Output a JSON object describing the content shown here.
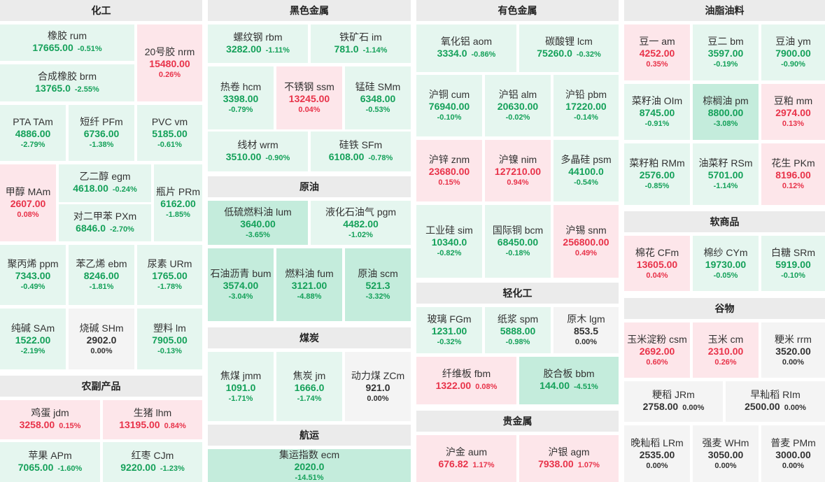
{
  "colors": {
    "down": "#15a15a",
    "up": "#e8334a",
    "flat": "#333333",
    "down_bg": "#e5f6ef",
    "down_strong_bg": "#c4ecdc",
    "up_bg": "#fde6ea",
    "flat_bg": "#f4f4f4",
    "header_bg": "#ebebeb"
  },
  "sections": {
    "chem": {
      "title": "化工",
      "items": [
        {
          "name": "橡胶  rum",
          "price": "17665.00",
          "change": "-0.51%"
        },
        {
          "name": "20号胶 nrm",
          "price": "15480.00",
          "change": "0.26%"
        },
        {
          "name": "合成橡胶  brm",
          "price": "13765.0",
          "change": "-2.55%"
        },
        {
          "name": "PTA  TAm",
          "price": "4886.00",
          "change": "-2.79%"
        },
        {
          "name": "短纤  PFm",
          "price": "6736.00",
          "change": "-1.38%"
        },
        {
          "name": "PVC  vm",
          "price": "5185.00",
          "change": "-0.61%"
        },
        {
          "name": "甲醇 MAm",
          "price": "2607.00",
          "change": "0.08%"
        },
        {
          "name": "乙二醇  egm",
          "price": "4618.00",
          "change": "-0.24%"
        },
        {
          "name": "对二甲苯  PXm",
          "price": "6846.0",
          "change": "-2.70%"
        },
        {
          "name": "瓶片 PRm",
          "price": "6162.00",
          "change": "-1.85%"
        },
        {
          "name": "聚丙烯  ppm",
          "price": "7343.00",
          "change": "-0.49%"
        },
        {
          "name": "苯乙烯  ebm",
          "price": "8246.00",
          "change": "-1.81%"
        },
        {
          "name": "尿素  URm",
          "price": "1765.00",
          "change": "-1.78%"
        },
        {
          "name": "纯碱  SAm",
          "price": "1522.00",
          "change": "-2.19%"
        },
        {
          "name": "烧碱  SHm",
          "price": "2902.0",
          "change": "0.00%"
        },
        {
          "name": "塑料  lm",
          "price": "7905.00",
          "change": "-0.13%"
        }
      ]
    },
    "agri": {
      "title": "农副产品",
      "items": [
        {
          "name": "鸡蛋  jdm",
          "price": "3258.00",
          "change": "0.15%"
        },
        {
          "name": "生猪  lhm",
          "price": "13195.00",
          "change": "0.84%"
        },
        {
          "name": "苹果  APm",
          "price": "7065.00",
          "change": "-1.60%"
        },
        {
          "name": "红枣  CJm",
          "price": "9220.00",
          "change": "-1.23%"
        }
      ]
    },
    "ferrous": {
      "title": "黑色金属",
      "items": [
        {
          "name": "螺纹钢  rbm",
          "price": "3282.00",
          "change": "-1.11%"
        },
        {
          "name": "铁矿石  im",
          "price": "781.0",
          "change": "-1.14%"
        },
        {
          "name": "热卷  hcm",
          "price": "3398.00",
          "change": "-0.79%"
        },
        {
          "name": "不锈钢  ssm",
          "price": "13245.00",
          "change": "0.04%"
        },
        {
          "name": "锰硅  SMm",
          "price": "6348.00",
          "change": "-0.53%"
        },
        {
          "name": "线材  wrm",
          "price": "3510.00",
          "change": "-0.90%"
        },
        {
          "name": "硅铁  SFm",
          "price": "6108.00",
          "change": "-0.78%"
        }
      ]
    },
    "crude": {
      "title": "原油",
      "items": [
        {
          "name": "低硫燃料油  lum",
          "price": "3640.00",
          "change": "-3.65%"
        },
        {
          "name": "液化石油气  pgm",
          "price": "4482.00",
          "change": "-1.02%"
        },
        {
          "name": "石油沥青 bum",
          "price": "3574.00",
          "change": "-3.04%"
        },
        {
          "name": "燃料油 fum",
          "price": "3121.00",
          "change": "-4.88%"
        },
        {
          "name": "原油 scm",
          "price": "521.3",
          "change": "-3.32%"
        }
      ]
    },
    "coal": {
      "title": "煤炭",
      "items": [
        {
          "name": "焦煤 jmm",
          "price": "1091.0",
          "change": "-1.71%"
        },
        {
          "name": "焦炭 jm",
          "price": "1666.0",
          "change": "-1.74%"
        },
        {
          "name": "动力煤 ZCm",
          "price": "921.0",
          "change": "0.00%"
        }
      ]
    },
    "ship": {
      "title": "航运",
      "items": [
        {
          "name": "集运指数  ecm",
          "price": "2020.0",
          "change": "-14.51%"
        }
      ]
    },
    "nonferrous": {
      "title": "有色金属",
      "items": [
        {
          "name": "氧化铝  aom",
          "price": "3334.0",
          "change": "-0.86%"
        },
        {
          "name": "碳酸锂  lcm",
          "price": "75260.0",
          "change": "-0.32%"
        },
        {
          "name": "沪铜  cum",
          "price": "76940.00",
          "change": "-0.10%"
        },
        {
          "name": "沪铝  alm",
          "price": "20630.00",
          "change": "-0.02%"
        },
        {
          "name": "沪铅  pbm",
          "price": "17220.00",
          "change": "-0.14%"
        },
        {
          "name": "沪锌  znm",
          "price": "23680.00",
          "change": "0.15%"
        },
        {
          "name": "沪镍  nim",
          "price": "127210.00",
          "change": "0.94%"
        },
        {
          "name": "多晶硅  psm",
          "price": "44100.0",
          "change": "-0.54%"
        },
        {
          "name": "工业硅 sim",
          "price": "10340.0",
          "change": "-0.82%"
        },
        {
          "name": "国际铜 bcm",
          "price": "68450.00",
          "change": "-0.18%"
        },
        {
          "name": "沪锡 snm",
          "price": "256800.00",
          "change": "0.49%"
        }
      ]
    },
    "light": {
      "title": "轻化工",
      "items": [
        {
          "name": "玻璃  FGm",
          "price": "1231.00",
          "change": "-0.32%"
        },
        {
          "name": "纸浆  spm",
          "price": "5888.00",
          "change": "-0.98%"
        },
        {
          "name": "原木  lgm",
          "price": "853.5",
          "change": "0.00%"
        },
        {
          "name": "纤维板  fbm",
          "price": "1322.00",
          "change": "0.08%"
        },
        {
          "name": "胶合板  bbm",
          "price": "144.00",
          "change": "-4.51%"
        }
      ]
    },
    "precious": {
      "title": "贵金属",
      "items": [
        {
          "name": "沪金  aum",
          "price": "676.82",
          "change": "1.17%"
        },
        {
          "name": "沪银  agm",
          "price": "7938.00",
          "change": "1.07%"
        }
      ]
    },
    "oils": {
      "title": "油脂油料",
      "items": [
        {
          "name": "豆一  am",
          "price": "4252.00",
          "change": "0.35%"
        },
        {
          "name": "豆二  bm",
          "price": "3597.00",
          "change": "-0.19%"
        },
        {
          "name": "豆油  ym",
          "price": "7900.00",
          "change": "-0.90%"
        },
        {
          "name": "菜籽油  OIm",
          "price": "8745.00",
          "change": "-0.91%"
        },
        {
          "name": "棕榈油  pm",
          "price": "8800.00",
          "change": "-3.08%"
        },
        {
          "name": "豆粕  mm",
          "price": "2974.00",
          "change": "0.13%"
        },
        {
          "name": "菜籽粕  RMm",
          "price": "2576.00",
          "change": "-0.85%"
        },
        {
          "name": "油菜籽  RSm",
          "price": "5701.00",
          "change": "-1.14%"
        },
        {
          "name": "花生  PKm",
          "price": "8196.00",
          "change": "0.12%"
        }
      ]
    },
    "soft": {
      "title": "软商品",
      "items": [
        {
          "name": "棉花  CFm",
          "price": "13605.00",
          "change": "0.04%"
        },
        {
          "name": "棉纱  CYm",
          "price": "19730.00",
          "change": "-0.05%"
        },
        {
          "name": "白糖  SRm",
          "price": "5919.00",
          "change": "-0.10%"
        }
      ]
    },
    "grain": {
      "title": "谷物",
      "items": [
        {
          "name": "玉米淀粉  csm",
          "price": "2692.00",
          "change": "0.60%"
        },
        {
          "name": "玉米  cm",
          "price": "2310.00",
          "change": "0.26%"
        },
        {
          "name": "粳米  rrm",
          "price": "3520.00",
          "change": "0.00%"
        },
        {
          "name": "粳稻  JRm",
          "price": "2758.00",
          "change": "0.00%"
        },
        {
          "name": "早籼稻  RIm",
          "price": "2500.00",
          "change": "0.00%"
        },
        {
          "name": "晚籼稻  LRm",
          "price": "2535.00",
          "change": "0.00%"
        },
        {
          "name": "强麦  WHm",
          "price": "3050.00",
          "change": "0.00%"
        },
        {
          "name": "普麦  PMm",
          "price": "3000.00",
          "change": "0.00%"
        }
      ]
    }
  }
}
